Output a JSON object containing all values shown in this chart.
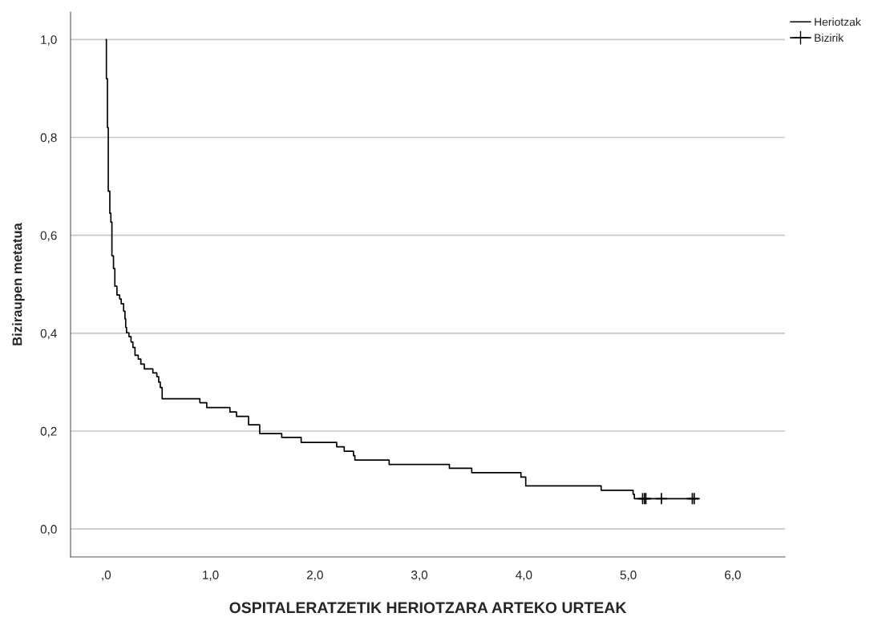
{
  "chart_data": {
    "type": "step",
    "xlabel": "OSPITALERATZETIK HERIOTZARA ARTEKO URTEAK",
    "ylabel": "Biziraupen metatua",
    "xlim": [
      -0.34,
      6.5
    ],
    "ylim": [
      -0.057,
      1.056
    ],
    "xticks": [
      {
        "value": 0,
        "label": ",0"
      },
      {
        "value": 1,
        "label": "1,0"
      },
      {
        "value": 2,
        "label": "2,0"
      },
      {
        "value": 3,
        "label": "3,0"
      },
      {
        "value": 4,
        "label": "4,0"
      },
      {
        "value": 5,
        "label": "5,0"
      },
      {
        "value": 6,
        "label": "6,0"
      }
    ],
    "yticks": [
      {
        "value": 0,
        "label": "0,0"
      },
      {
        "value": 0.2,
        "label": "0,2"
      },
      {
        "value": 0.4,
        "label": "0,4"
      },
      {
        "value": 0.6,
        "label": "0,6"
      },
      {
        "value": 0.8,
        "label": "0,8"
      },
      {
        "value": 1.0,
        "label": "1,0"
      }
    ],
    "grid": "y",
    "legend": "top right",
    "series": [
      {
        "name": "Heriotzak",
        "color": "#000000",
        "marker": "none",
        "line_style": "solid",
        "x": [
          0,
          0.003,
          0.013,
          0.021,
          0.036,
          0.046,
          0.056,
          0.071,
          0.084,
          0.104,
          0.13,
          0.145,
          0.168,
          0.181,
          0.188,
          0.196,
          0.219,
          0.239,
          0.257,
          0.277,
          0.308,
          0.333,
          0.366,
          0.448,
          0.486,
          0.504,
          0.519,
          0.537,
          0.898,
          0.964,
          1.186,
          1.249,
          1.364,
          1.471,
          1.682,
          1.868,
          2.208,
          2.28,
          2.369,
          2.382,
          2.71,
          3.287,
          3.501,
          3.972,
          4.018,
          4.74,
          5.046,
          5.058,
          5.67
        ],
        "values": [
          1.0,
          0.92,
          0.82,
          0.69,
          0.645,
          0.627,
          0.558,
          0.532,
          0.496,
          0.478,
          0.47,
          0.46,
          0.445,
          0.429,
          0.412,
          0.401,
          0.393,
          0.382,
          0.371,
          0.355,
          0.347,
          0.337,
          0.327,
          0.319,
          0.311,
          0.3,
          0.289,
          0.266,
          0.258,
          0.248,
          0.239,
          0.23,
          0.213,
          0.195,
          0.187,
          0.177,
          0.168,
          0.159,
          0.15,
          0.141,
          0.132,
          0.124,
          0.115,
          0.106,
          0.088,
          0.079,
          0.071,
          0.062,
          0.062
        ]
      },
      {
        "name": "Bizirik",
        "type": "scatter",
        "color": "#000000",
        "marker": "cross",
        "x": [
          5.137,
          5.155,
          5.168,
          5.317,
          5.613,
          5.631
        ],
        "values": [
          0.062,
          0.062,
          0.062,
          0.062,
          0.062,
          0.062
        ]
      }
    ]
  }
}
